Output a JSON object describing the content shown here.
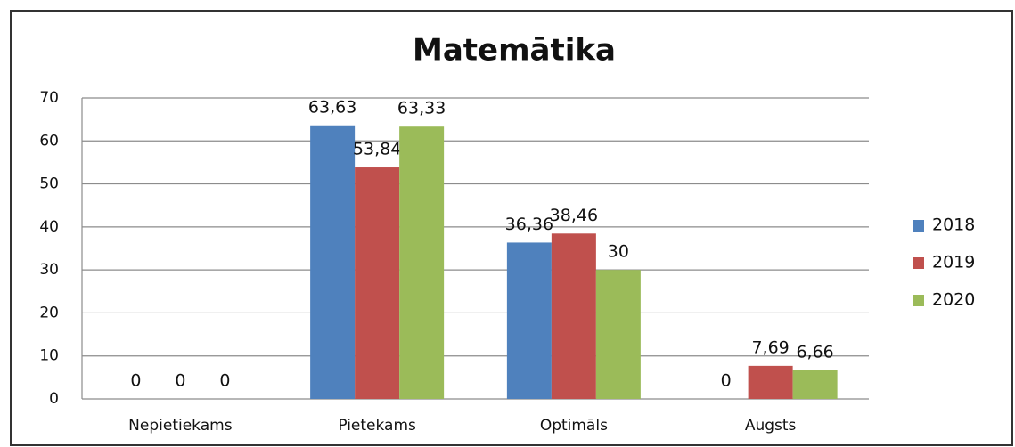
{
  "chart_data": {
    "type": "bar",
    "title": "Matemātika",
    "categories": [
      "Nepietiekams",
      "Pietekams",
      "Optimāls",
      "Augsts"
    ],
    "series": [
      {
        "name": "2018",
        "color": "#4f81bd",
        "values": [
          0,
          63.63,
          36.36,
          0
        ],
        "value_labels": [
          "0",
          "63,63",
          "36,36",
          "0"
        ]
      },
      {
        "name": "2019",
        "color": "#c0504d",
        "values": [
          0,
          53.84,
          38.46,
          7.69
        ],
        "value_labels": [
          "0",
          "53,84",
          "38,46",
          "7,69"
        ]
      },
      {
        "name": "2020",
        "color": "#9bbb59",
        "values": [
          0,
          63.33,
          30,
          6.66
        ],
        "value_labels": [
          "0",
          "63,33",
          "30",
          "6,66"
        ]
      }
    ],
    "ylim": [
      0,
      70
    ],
    "yticks": [
      0,
      10,
      20,
      30,
      40,
      50,
      60,
      70
    ],
    "grid": true,
    "legend": "right"
  }
}
